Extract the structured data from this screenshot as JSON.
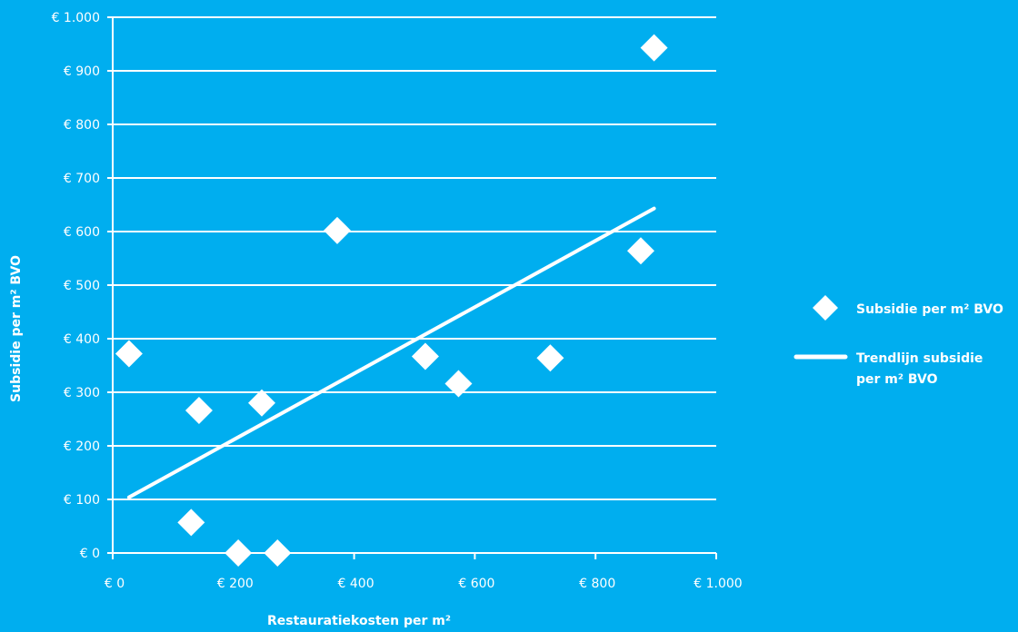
{
  "chart_data": {
    "type": "scatter",
    "title": "",
    "xlabel": "Restauratiekosten per m²",
    "ylabel": "Subsidie per m² BVO",
    "xlim": [
      0,
      1000
    ],
    "ylim": [
      0,
      1000
    ],
    "x_ticks": [
      0,
      200,
      400,
      600,
      800,
      1000
    ],
    "x_tick_labels": [
      "€ 0",
      "€ 200",
      "€ 400",
      "€ 600",
      "€ 800",
      "€ 1.000"
    ],
    "y_ticks": [
      0,
      100,
      200,
      300,
      400,
      500,
      600,
      700,
      800,
      900,
      1000
    ],
    "y_tick_labels": [
      "€ 0",
      "€ 100",
      "€ 200",
      "€ 300",
      "€ 400",
      "€ 500",
      "€ 600",
      "€ 700",
      "€ 800",
      "€ 900",
      "€ 1.000"
    ],
    "grid": "horizontal",
    "legend_position": "right",
    "colors": {
      "background": "#00aeef",
      "foreground": "#ffffff"
    },
    "series": [
      {
        "name": "Subsidie per m² BVO",
        "type": "scatter",
        "marker": "diamond",
        "points": [
          {
            "x": 27,
            "y": 372
          },
          {
            "x": 130,
            "y": 57
          },
          {
            "x": 143,
            "y": 266
          },
          {
            "x": 208,
            "y": 0
          },
          {
            "x": 247,
            "y": 280
          },
          {
            "x": 273,
            "y": 0
          },
          {
            "x": 372,
            "y": 602
          },
          {
            "x": 518,
            "y": 367
          },
          {
            "x": 573,
            "y": 316
          },
          {
            "x": 725,
            "y": 364
          },
          {
            "x": 875,
            "y": 564
          },
          {
            "x": 897,
            "y": 943
          }
        ]
      },
      {
        "name": "Trendlijn subsidie per m² BVO",
        "name_lines": [
          "Trendlijn subsidie",
          "per m² BVO"
        ],
        "type": "line",
        "points": [
          {
            "x": 27,
            "y": 104
          },
          {
            "x": 897,
            "y": 643
          }
        ]
      }
    ]
  }
}
